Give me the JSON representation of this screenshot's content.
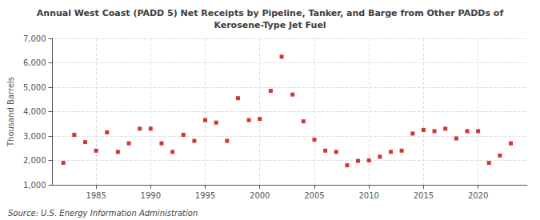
{
  "chart_data": {
    "type": "scatter",
    "title": "Annual West Coast (PADD 5) Net Receipts by Pipeline, Tanker, and Barge from Other PADDs of\nKerosene-Type Jet Fuel",
    "ylabel": "Thousand Barrels",
    "annotations": [
      "Source: U.S. Energy Information Administration"
    ],
    "x": [
      1982,
      1983,
      1984,
      1985,
      1986,
      1987,
      1988,
      1989,
      1990,
      1991,
      1992,
      1993,
      1994,
      1995,
      1996,
      1997,
      1998,
      1999,
      2000,
      2001,
      2002,
      2003,
      2004,
      2005,
      2006,
      2007,
      2008,
      2009,
      2010,
      2011,
      2012,
      2013,
      2014,
      2015,
      2016,
      2017,
      2018,
      2019,
      2020,
      2021,
      2022,
      2023
    ],
    "values": [
      1900,
      3050,
      2750,
      2400,
      3150,
      2350,
      2700,
      3300,
      3300,
      2700,
      2350,
      3050,
      2800,
      3650,
      3550,
      2800,
      4550,
      3650,
      3700,
      4850,
      6250,
      4700,
      3600,
      2850,
      2400,
      2350,
      1800,
      1980,
      2000,
      2150,
      2350,
      2400,
      3100,
      3250,
      3200,
      3300,
      2900,
      3200,
      3200,
      1900,
      2200,
      2700
    ],
    "color": "#cc0000",
    "marker": "square",
    "xlim": [
      1981,
      2024.5
    ],
    "xticks": [
      1985,
      1990,
      1995,
      2000,
      2005,
      2010,
      2015,
      2020
    ],
    "ylim": [
      1000,
      7000
    ],
    "yticks": [
      {
        "value": 1000,
        "label": "1,000"
      },
      {
        "value": 2000,
        "label": "2,000"
      },
      {
        "value": 3000,
        "label": "3,000"
      },
      {
        "value": 4000,
        "label": "4,000"
      },
      {
        "value": 5000,
        "label": "5,000"
      },
      {
        "value": 6000,
        "label": "6,000"
      },
      {
        "value": 7000,
        "label": "7,000"
      }
    ],
    "grid": true
  }
}
